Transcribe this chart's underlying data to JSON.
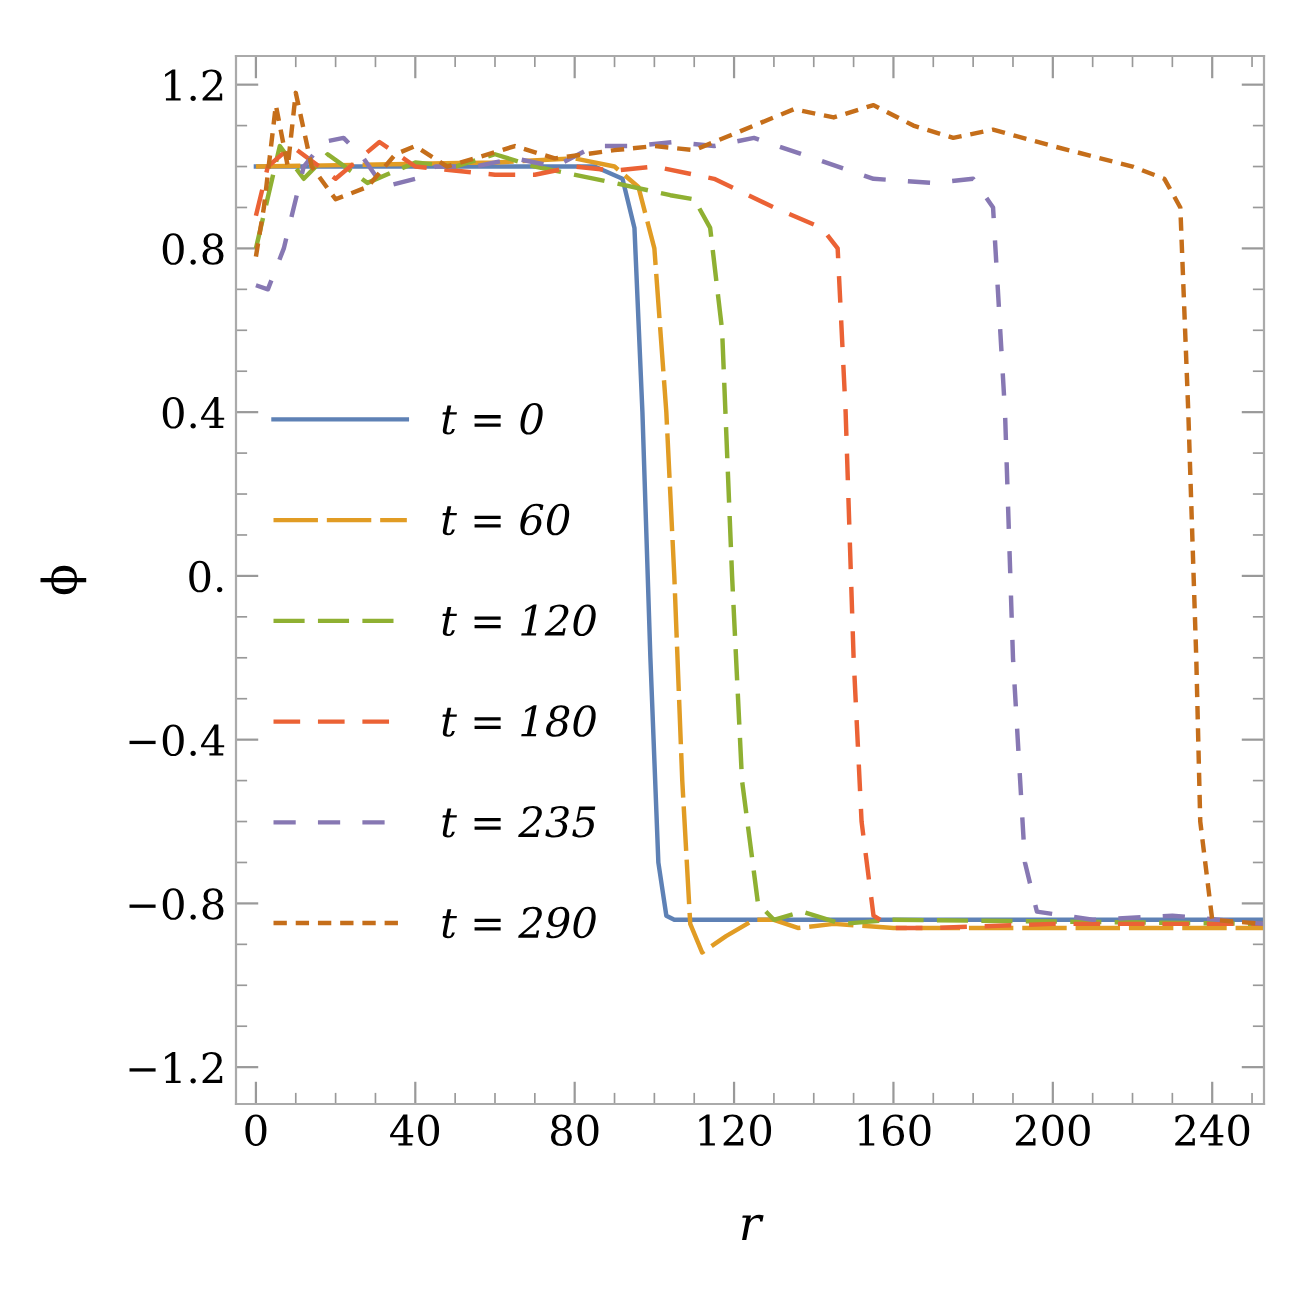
{
  "chart_data": {
    "type": "line",
    "xlabel": "r",
    "ylabel": "ϕ",
    "xlim": [
      -5,
      253
    ],
    "ylim": [
      -1.29,
      1.27
    ],
    "xticks": [
      0,
      40,
      80,
      120,
      160,
      200,
      240
    ],
    "yticks": [
      {
        "value": -1.2,
        "label": "−1.2"
      },
      {
        "value": -0.8,
        "label": "−0.8"
      },
      {
        "value": -0.4,
        "label": "−0.4"
      },
      {
        "value": 0,
        "label": "0."
      },
      0.4,
      0.8,
      1.2
    ],
    "grid": false,
    "legend": "left",
    "marker": "none",
    "series": [
      {
        "name": "t = 0",
        "color": "#5e81b5",
        "line_style": "solid",
        "x": [
          0,
          85,
          92,
          95,
          97,
          99,
          101,
          103,
          105,
          253
        ],
        "values": [
          1.0,
          1.0,
          0.97,
          0.85,
          0.4,
          -0.2,
          -0.7,
          -0.83,
          -0.84,
          -0.84
        ]
      },
      {
        "name": "t = 60",
        "color": "#e19c24",
        "line_style": "dashed",
        "x": [
          0,
          60,
          80,
          90,
          96,
          100,
          103,
          105,
          107,
          109,
          112,
          118,
          125,
          130,
          136,
          145,
          160,
          253
        ],
        "values": [
          1.0,
          1.01,
          1.02,
          1.0,
          0.95,
          0.8,
          0.4,
          0.0,
          -0.5,
          -0.85,
          -0.92,
          -0.88,
          -0.84,
          -0.84,
          -0.86,
          -0.85,
          -0.86,
          -0.86
        ]
      },
      {
        "name": "t = 120",
        "color": "#8fb032",
        "line_style": "dashed",
        "x": [
          0,
          6,
          12,
          18,
          28,
          40,
          50,
          60,
          70,
          90,
          104,
          110,
          114,
          117,
          119.5,
          122,
          126,
          130,
          137,
          147,
          160,
          253
        ],
        "values": [
          0.8,
          1.05,
          0.97,
          1.03,
          0.96,
          1.01,
          1.0,
          1.03,
          1.0,
          0.96,
          0.93,
          0.92,
          0.85,
          0.6,
          0.0,
          -0.5,
          -0.8,
          -0.84,
          -0.82,
          -0.85,
          -0.84,
          -0.85
        ]
      },
      {
        "name": "t = 180",
        "color": "#eb6235",
        "line_style": "dashed",
        "x": [
          0,
          3,
          9,
          20,
          31,
          40,
          60,
          70,
          80,
          90,
          100,
          115,
          130,
          142,
          146,
          148,
          150,
          152,
          155,
          160,
          170,
          200,
          253
        ],
        "values": [
          0.88,
          1.0,
          1.05,
          0.97,
          1.06,
          1.0,
          0.98,
          0.98,
          1.0,
          0.99,
          1.0,
          0.97,
          0.9,
          0.85,
          0.8,
          0.4,
          -0.2,
          -0.6,
          -0.83,
          -0.86,
          -0.86,
          -0.85,
          -0.85
        ]
      },
      {
        "name": "t = 235",
        "color": "#8778b3",
        "line_style": "dashed",
        "x": [
          0,
          3,
          7,
          12,
          17,
          22,
          27,
          32,
          40,
          45,
          55,
          65,
          75,
          85,
          95,
          105,
          115,
          125,
          140,
          155,
          170,
          180,
          185,
          188,
          190,
          193,
          196,
          210,
          230,
          253
        ],
        "values": [
          0.71,
          0.7,
          0.8,
          1.0,
          1.06,
          1.07,
          1.02,
          0.95,
          0.97,
          1.0,
          1.0,
          1.02,
          1.0,
          1.05,
          1.05,
          1.06,
          1.05,
          1.07,
          1.02,
          0.97,
          0.96,
          0.97,
          0.9,
          0.4,
          -0.2,
          -0.7,
          -0.82,
          -0.84,
          -0.83,
          -0.85
        ]
      },
      {
        "name": "t = 290",
        "color": "#c56e1a",
        "line_style": "dashed",
        "x": [
          0,
          2,
          5,
          8,
          10,
          14,
          20,
          28,
          35,
          40,
          48,
          55,
          65,
          75,
          90,
          100,
          110,
          125,
          135,
          145,
          155,
          165,
          175,
          185,
          200,
          220,
          228,
          232,
          234,
          236,
          237,
          240,
          253
        ],
        "values": [
          0.78,
          0.9,
          1.15,
          1.0,
          1.18,
          1.0,
          0.92,
          0.95,
          1.03,
          1.05,
          1.0,
          1.02,
          1.05,
          1.02,
          1.04,
          1.05,
          1.04,
          1.1,
          1.14,
          1.12,
          1.15,
          1.1,
          1.07,
          1.09,
          1.05,
          1.0,
          0.97,
          0.9,
          0.4,
          -0.2,
          -0.6,
          -0.84,
          -0.85
        ]
      }
    ]
  }
}
